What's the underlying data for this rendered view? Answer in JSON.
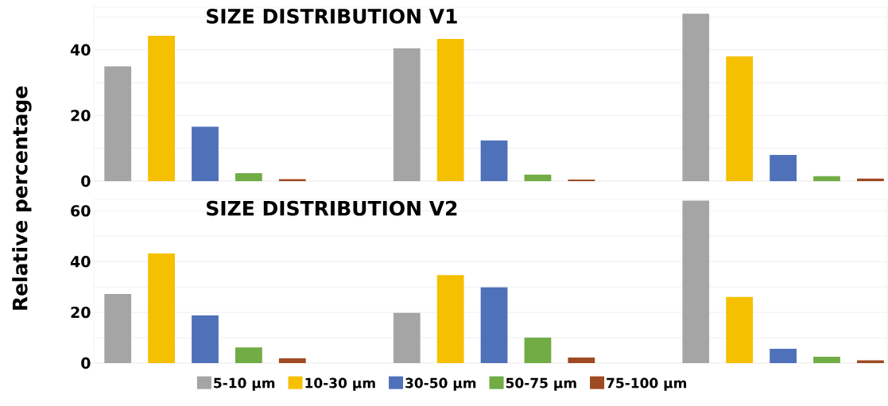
{
  "chart_data": [
    {
      "type": "bar",
      "title": "SIZE DISTRIBUTION V1",
      "ylabel": "Relative percentage",
      "categories": [
        null,
        null,
        null
      ],
      "ylim": [
        0,
        53
      ],
      "yticks": [
        0,
        {
          "value": 10,
          "label": null
        },
        20,
        {
          "value": 30,
          "label": null
        },
        40,
        {
          "value": 50,
          "label": null
        }
      ],
      "grid": "y",
      "series": [
        {
          "color": "#a5a5a5",
          "values": [
            35,
            40.5,
            51
          ]
        },
        {
          "color": "#f5c000",
          "values": [
            44.3,
            43.3,
            38
          ]
        },
        {
          "color": "#4f71b9",
          "values": [
            16.6,
            12.4,
            8
          ]
        },
        {
          "color": "#71ac45",
          "values": [
            2.4,
            2,
            1.5
          ]
        },
        {
          "color": "#9e4a22",
          "values": [
            0.6,
            0.5,
            0.8
          ]
        }
      ]
    },
    {
      "type": "bar",
      "title": "SIZE DISTRIBUTION V2",
      "categories": [
        null,
        null,
        null
      ],
      "ylim": [
        0,
        64.5
      ],
      "yticks": [
        0,
        {
          "value": 10,
          "label": null
        },
        20,
        {
          "value": 30,
          "label": null
        },
        40,
        {
          "value": 50,
          "label": null
        },
        60
      ],
      "grid": "y",
      "legend": "bottom",
      "series": [
        {
          "name": "5-10 µm",
          "color": "#a5a5a5",
          "values": [
            27.2,
            19.8,
            64
          ]
        },
        {
          "name": "10-30 µm",
          "color": "#f5c000",
          "values": [
            43.2,
            34.7,
            26.1
          ]
        },
        {
          "name": "30-50 µm",
          "color": "#4f71b9",
          "values": [
            18.8,
            29.9,
            5.6
          ]
        },
        {
          "name": "50-75 µm",
          "color": "#71ac45",
          "values": [
            6.2,
            10.1,
            2.5
          ]
        },
        {
          "name": "75-100 µm",
          "color": "#9e4a22",
          "values": [
            1.9,
            2.2,
            1.1
          ]
        }
      ]
    }
  ]
}
